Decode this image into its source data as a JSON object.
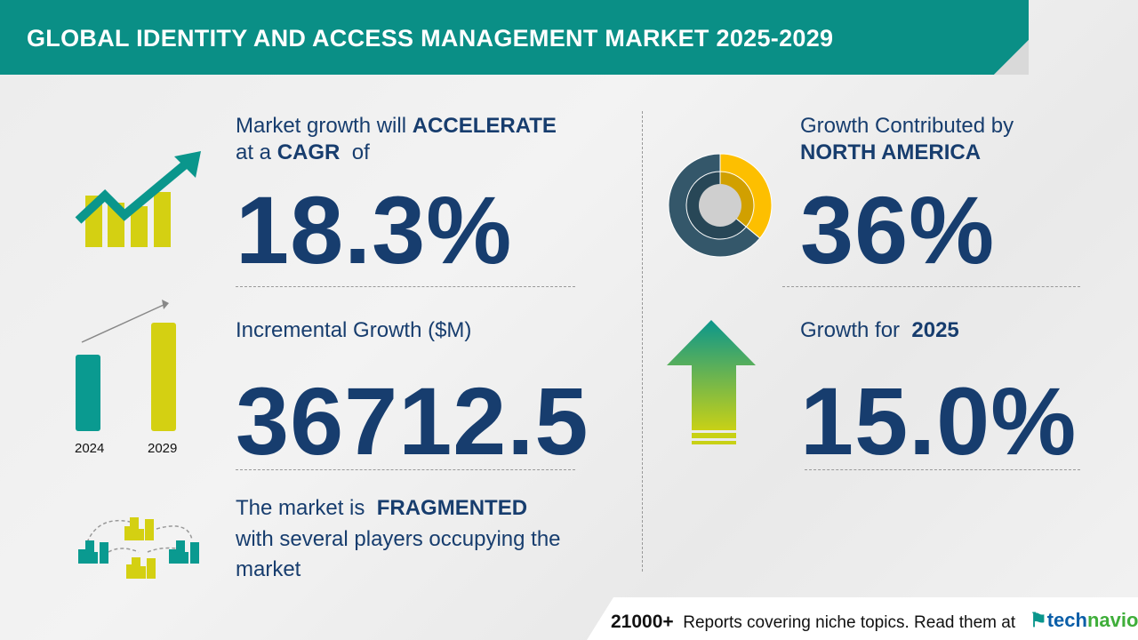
{
  "header": {
    "title": "GLOBAL IDENTITY AND ACCESS MANAGEMENT MARKET 2025-2029"
  },
  "cagr": {
    "line1_prefix": "Market growth will",
    "line1_emph": "ACCELERATE",
    "line2_prefix": "at a",
    "line2_emph": "CAGR",
    "line2_suffix": "of",
    "value": "18.3%",
    "icon": "growth-chart-icon"
  },
  "incremental": {
    "label": "Incremental Growth ($M)",
    "value": "36712.5",
    "bar_years": [
      "2024",
      "2029"
    ],
    "icon": "bar-comparison-icon"
  },
  "fragmented": {
    "line1_prefix": "The market is",
    "line1_emph": "FRAGMENTED",
    "line2": "with several players occupying the",
    "line3": "market",
    "icon": "buildings-network-icon"
  },
  "region": {
    "line1": "Growth Contributed by",
    "line2": "NORTH AMERICA",
    "value": "36%",
    "share_percent": 36,
    "icon": "donut-chart-icon"
  },
  "yoy": {
    "label_prefix": "Growth for",
    "label_emph": "2025",
    "value": "15.0%",
    "icon": "up-arrow-icon"
  },
  "footer": {
    "count": "21000+",
    "text": "Reports covering niche topics. Read them at",
    "brand_a": "tech",
    "brand_b": "navio"
  },
  "colors": {
    "teal": "#0a968c",
    "lime": "#d4d012",
    "navy": "#173d6e",
    "donut_dark": "#34576a",
    "donut_yellow": "#fdbf00"
  }
}
